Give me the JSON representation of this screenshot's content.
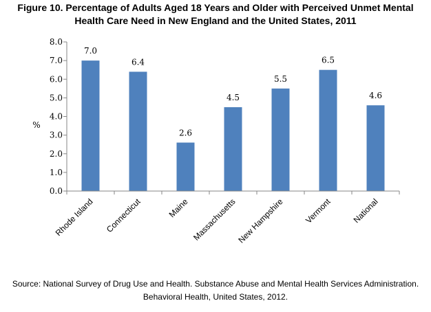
{
  "chart_data": {
    "type": "bar",
    "title_line1": "Figure 10. Percentage of Adults Aged 18 Years and Older with Perceived Unmet Mental",
    "title_line2": "Health Care Need in New England and the United States, 2011",
    "ylabel": "%",
    "xlabel": "",
    "ylim": [
      0,
      8
    ],
    "yticks": [
      "0.0",
      "1.0",
      "2.0",
      "3.0",
      "4.0",
      "5.0",
      "6.0",
      "7.0",
      "8.0"
    ],
    "categories": [
      "Rhode Island",
      "Connecticut",
      "Maine",
      "Massachusetts",
      "New Hampshire",
      "Vermont",
      "National"
    ],
    "values": [
      7.0,
      6.4,
      2.6,
      4.5,
      5.5,
      6.5,
      4.6
    ],
    "data_labels": [
      "7.0",
      "6.4",
      "2.6",
      "4.5",
      "5.5",
      "6.5",
      "4.6"
    ],
    "bar_color": "#4f81bd",
    "grid": false,
    "legend": "none"
  },
  "source_line1": "Source: National Survey of Drug Use and Health. Substance Abuse and Mental Health Services Administration.",
  "source_line2": "Behavioral Health, United States, 2012."
}
